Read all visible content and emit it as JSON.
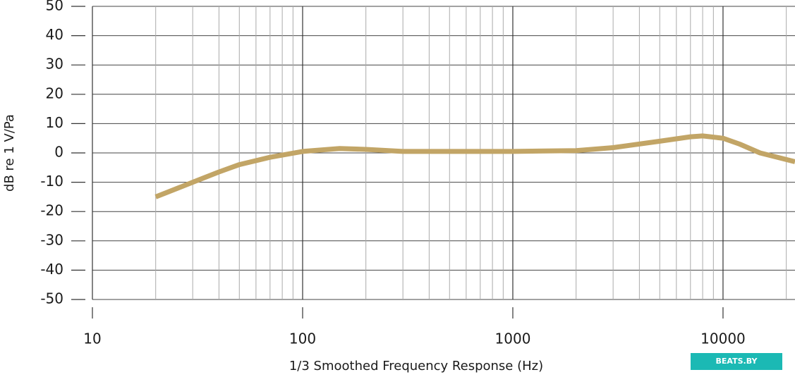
{
  "chart_data": {
    "type": "line",
    "x_label": "1/3 Smoothed Frequency Response (Hz)",
    "y_label": "dB re 1 V/Pa",
    "watermark": "BEATS.BY",
    "x_scale": "log",
    "x": [
      20,
      30,
      40,
      50,
      70,
      100,
      150,
      200,
      300,
      500,
      1000,
      2000,
      3000,
      5000,
      7000,
      8000,
      10000,
      12000,
      15000,
      22000
    ],
    "series": [
      {
        "color": "#c2a566",
        "values": [
          -15,
          -10,
          -6.5,
          -4,
          -1.5,
          0.5,
          1.5,
          1.2,
          0.5,
          0.5,
          0.5,
          0.8,
          1.8,
          4,
          5.5,
          5.8,
          5,
          3,
          0,
          -3
        ]
      }
    ],
    "xlim": [
      10,
      22000
    ],
    "xticks": [
      10,
      100,
      1000,
      10000
    ],
    "xminorticks": [
      20,
      30,
      40,
      50,
      60,
      70,
      80,
      90,
      200,
      300,
      400,
      500,
      600,
      700,
      800,
      900,
      2000,
      3000,
      4000,
      5000,
      6000,
      7000,
      8000,
      9000,
      20000
    ],
    "ylim": [
      -50,
      50
    ],
    "yticks": [
      -50,
      -40,
      -30,
      -20,
      -10,
      0,
      10,
      20,
      30,
      40,
      50
    ],
    "grid": true
  }
}
